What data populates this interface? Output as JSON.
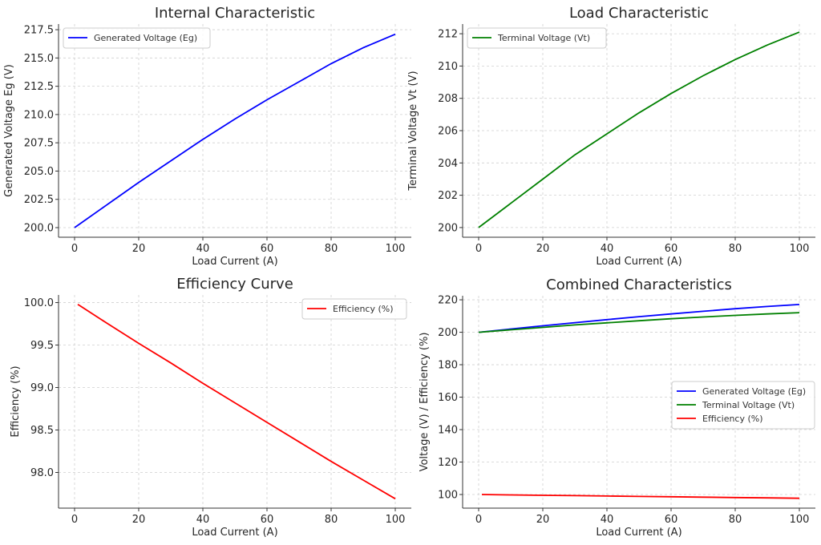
{
  "chart_data": [
    {
      "type": "line",
      "title": "Internal Characteristic",
      "xlabel": "Load Current (A)",
      "ylabel": "Generated Voltage Eg (V)",
      "xlim": [
        -5,
        105
      ],
      "ylim": [
        199.15,
        218.0
      ],
      "xticks": [
        0,
        20,
        40,
        60,
        80,
        100
      ],
      "yticks": [
        200.0,
        202.5,
        205.0,
        207.5,
        210.0,
        212.5,
        215.0,
        217.5
      ],
      "ytick_decimals": 1,
      "grid": true,
      "legend": "upper-left",
      "series": [
        {
          "name": "Generated Voltage (Eg)",
          "color": "#0000ff",
          "x": [
            0,
            10,
            20,
            30,
            40,
            50,
            60,
            70,
            80,
            90,
            100
          ],
          "y": [
            200,
            202.0,
            204.0,
            205.9,
            207.8,
            209.6,
            211.3,
            212.9,
            214.5,
            215.9,
            217.1
          ]
        }
      ]
    },
    {
      "type": "line",
      "title": "Load Characteristic",
      "xlabel": "Load Current (A)",
      "ylabel": "Terminal Voltage Vt (V)",
      "xlim": [
        -5,
        105
      ],
      "ylim": [
        199.4,
        212.6
      ],
      "xticks": [
        0,
        20,
        40,
        60,
        80,
        100
      ],
      "yticks": [
        200,
        202,
        204,
        206,
        208,
        210,
        212
      ],
      "ytick_decimals": 0,
      "grid": true,
      "legend": "upper-left",
      "series": [
        {
          "name": "Terminal Voltage (Vt)",
          "color": "#008000",
          "x": [
            0,
            10,
            20,
            30,
            40,
            50,
            60,
            70,
            80,
            90,
            100
          ],
          "y": [
            200,
            201.5,
            203.0,
            204.5,
            205.8,
            207.1,
            208.3,
            209.4,
            210.4,
            211.3,
            212.1
          ]
        }
      ]
    },
    {
      "type": "line",
      "title": "Efficiency Curve",
      "xlabel": "Load Current (A)",
      "ylabel": "Efficiency (%)",
      "xlim": [
        -5,
        105
      ],
      "ylim": [
        97.58,
        100.09
      ],
      "xticks": [
        0,
        20,
        40,
        60,
        80,
        100
      ],
      "yticks": [
        98.0,
        98.5,
        99.0,
        99.5,
        100.0
      ],
      "ytick_decimals": 1,
      "grid": true,
      "legend": "upper-right",
      "series": [
        {
          "name": "Efficiency (%)",
          "color": "#ff0000",
          "x": [
            1,
            10,
            20,
            30,
            40,
            50,
            60,
            70,
            80,
            90,
            100
          ],
          "y": [
            99.98,
            99.76,
            99.52,
            99.29,
            99.05,
            98.82,
            98.59,
            98.36,
            98.13,
            97.91,
            97.69
          ]
        }
      ]
    },
    {
      "type": "line",
      "title": "Combined Characteristics",
      "xlabel": "Load Current (A)",
      "ylabel": "Voltage (V) / Efficiency (%)",
      "xlim": [
        -5,
        105
      ],
      "ylim": [
        91.6,
        222.5
      ],
      "xticks": [
        0,
        20,
        40,
        60,
        80,
        100
      ],
      "yticks": [
        100,
        120,
        140,
        160,
        180,
        200,
        220
      ],
      "ytick_decimals": 0,
      "grid": true,
      "legend": "center-right",
      "series": [
        {
          "name": "Generated Voltage (Eg)",
          "color": "#0000ff",
          "x": [
            0,
            10,
            20,
            30,
            40,
            50,
            60,
            70,
            80,
            90,
            100
          ],
          "y": [
            200,
            202.0,
            204.0,
            205.9,
            207.8,
            209.6,
            211.3,
            212.9,
            214.5,
            215.9,
            217.1
          ]
        },
        {
          "name": "Terminal Voltage (Vt)",
          "color": "#008000",
          "x": [
            0,
            10,
            20,
            30,
            40,
            50,
            60,
            70,
            80,
            90,
            100
          ],
          "y": [
            200,
            201.5,
            203.0,
            204.5,
            205.8,
            207.1,
            208.3,
            209.4,
            210.4,
            211.3,
            212.1
          ]
        },
        {
          "name": "Efficiency (%)",
          "color": "#ff0000",
          "x": [
            1,
            10,
            20,
            30,
            40,
            50,
            60,
            70,
            80,
            90,
            100
          ],
          "y": [
            99.98,
            99.76,
            99.52,
            99.29,
            99.05,
            98.82,
            98.59,
            98.36,
            98.13,
            97.91,
            97.69
          ]
        }
      ]
    }
  ]
}
